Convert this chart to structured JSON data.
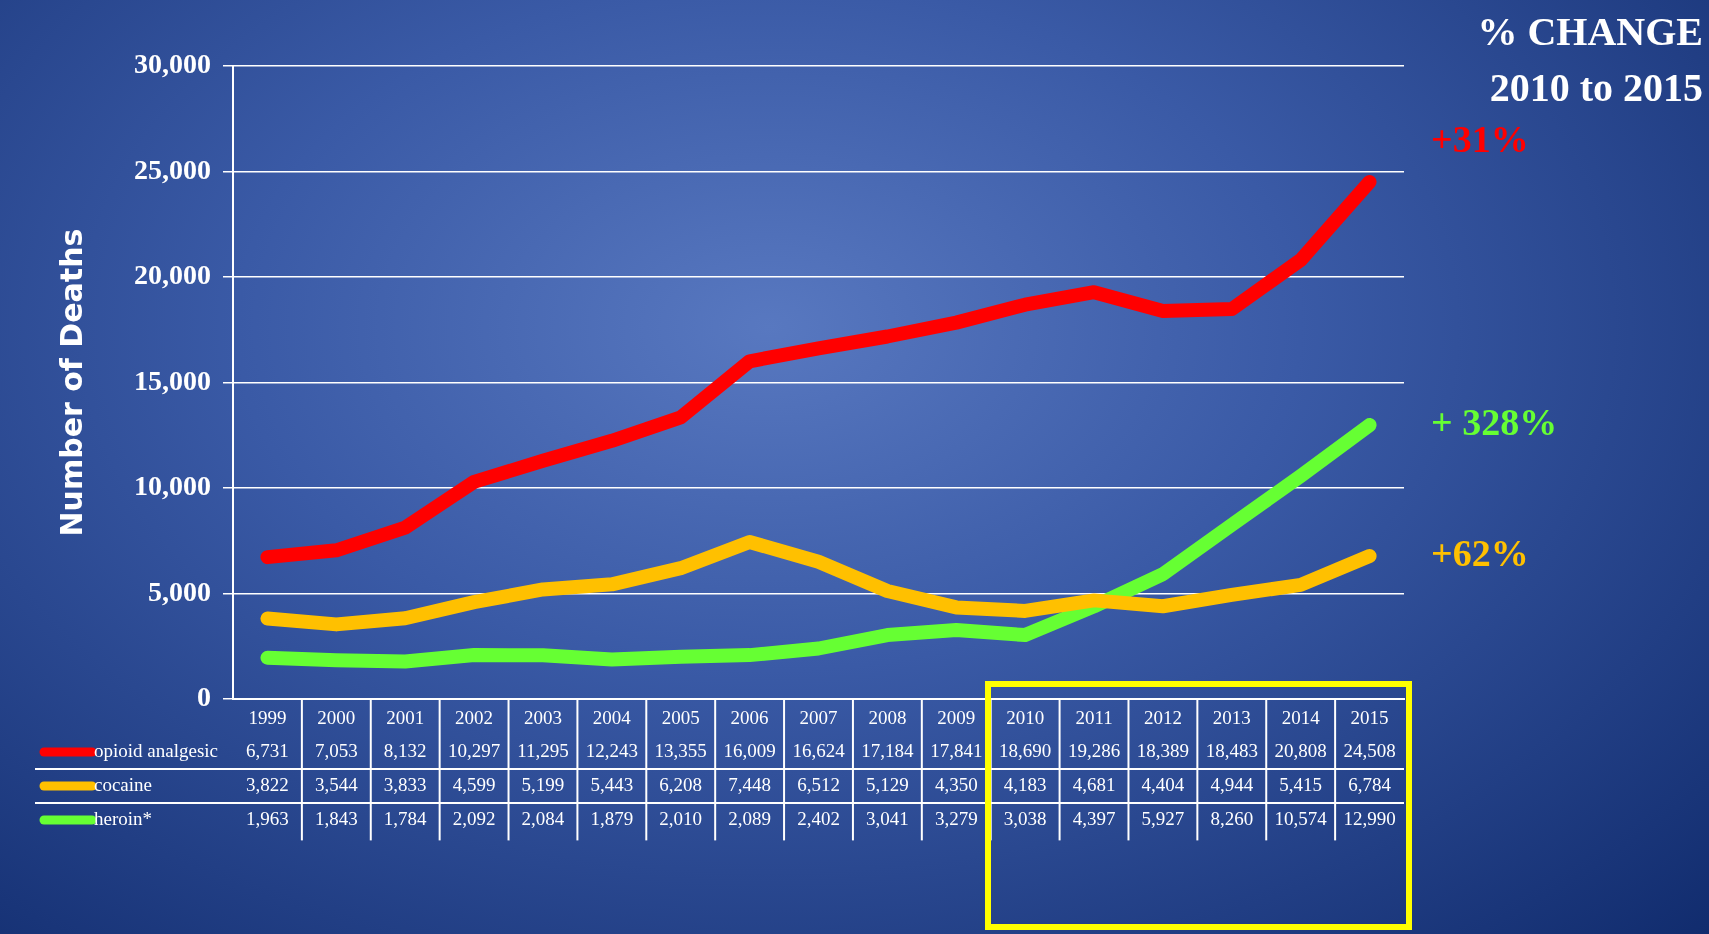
{
  "chart_data": {
    "type": "line",
    "ylabel": "Number of Deaths",
    "categories": [
      "1999",
      "2000",
      "2001",
      "2002",
      "2003",
      "2004",
      "2005",
      "2006",
      "2007",
      "2008",
      "2009",
      "2010",
      "2011",
      "2012",
      "2013",
      "2014",
      "2015"
    ],
    "series": [
      {
        "name": "opioid analgesic",
        "color": "#ff0000",
        "values": [
          6731,
          7053,
          8132,
          10297,
          11295,
          12243,
          13355,
          16009,
          16624,
          17184,
          17841,
          18690,
          19286,
          18389,
          18483,
          20808,
          24508
        ],
        "value_labels": [
          "6,731",
          "7,053",
          "8,132",
          "10,297",
          "11,295",
          "12,243",
          "13,355",
          "16,009",
          "16,624",
          "17,184",
          "17,841",
          "18,690",
          "19,286",
          "18,389",
          "18,483",
          "20,808",
          "24,508"
        ]
      },
      {
        "name": "cocaine",
        "color": "#ffc000",
        "values": [
          3822,
          3544,
          3833,
          4599,
          5199,
          5443,
          6208,
          7448,
          6512,
          5129,
          4350,
          4183,
          4681,
          4404,
          4944,
          5415,
          6784
        ],
        "value_labels": [
          "3,822",
          "3,544",
          "3,833",
          "4,599",
          "5,199",
          "5,443",
          "6,208",
          "7,448",
          "6,512",
          "5,129",
          "4,350",
          "4,183",
          "4,681",
          "4,404",
          "4,944",
          "5,415",
          "6,784"
        ]
      },
      {
        "name": "heroin*",
        "color": "#66ff33",
        "values": [
          1963,
          1843,
          1784,
          2092,
          2084,
          1879,
          2010,
          2089,
          2402,
          3041,
          3279,
          3038,
          4397,
          5927,
          8260,
          10574,
          12990
        ],
        "value_labels": [
          "1,963",
          "1,843",
          "1,784",
          "2,092",
          "2,084",
          "1,879",
          "2,010",
          "2,089",
          "2,402",
          "3,041",
          "3,279",
          "3,038",
          "4,397",
          "5,927",
          "8,260",
          "10,574",
          "12,990"
        ]
      }
    ],
    "ylim": [
      0,
      30000
    ],
    "yticks": [
      {
        "value": 0,
        "label": "0"
      },
      {
        "value": 5000,
        "label": "5,000"
      },
      {
        "value": 10000,
        "label": "10,000"
      },
      {
        "value": 15000,
        "label": "15,000"
      },
      {
        "value": 20000,
        "label": "20,000"
      },
      {
        "value": 25000,
        "label": "25,000"
      },
      {
        "value": 30000,
        "label": "30,000"
      }
    ],
    "grid": "y",
    "legend": "bottom",
    "marker": "none",
    "line_style": "solid",
    "annotations": [
      "% CHANGE",
      "2010 to 2015",
      {
        "text": "+31%",
        "x": "2015",
        "y": 24508
      },
      {
        "text": "+ 328%",
        "x": "2015",
        "y": 12990
      },
      {
        "text": "+62%",
        "x": "2015",
        "y": 6784
      }
    ]
  }
}
